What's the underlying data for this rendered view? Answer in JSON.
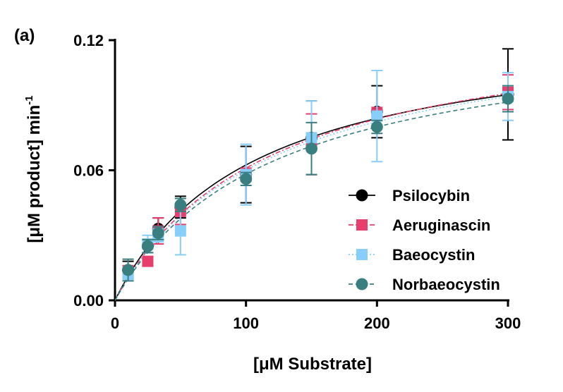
{
  "panel_label": "(a)",
  "chart_data": {
    "type": "scatter",
    "xlabel": "[μM Substrate]",
    "ylabel": "[μM product] min",
    "ylabel_superscript": "-1",
    "xlim": [
      0,
      300
    ],
    "ylim": [
      0,
      0.12
    ],
    "xticks": [
      "0",
      "100",
      "200",
      "300"
    ],
    "yticks": [
      "0.00",
      "0.06",
      "0.12"
    ],
    "xtick_values": [
      0,
      100,
      200,
      300
    ],
    "ytick_values": [
      0,
      0.06,
      0.12
    ],
    "grid": false,
    "legend_position": "bottom-right",
    "series": [
      {
        "name": "Psilocybin",
        "color": "#000000",
        "marker": "circle",
        "line_style": "solid",
        "x": [
          10,
          25,
          33,
          50,
          100,
          150,
          200,
          300
        ],
        "y": [
          0.014,
          0.025,
          0.033,
          0.043,
          0.058,
          0.075,
          0.087,
          0.095
        ],
        "err": [
          0.004,
          0.003,
          0.005,
          0.005,
          0.013,
          0.017,
          0.012,
          0.021
        ],
        "fit": {
          "vmax": 0.128,
          "km": 105
        }
      },
      {
        "name": "Aeruginascin",
        "color": "#e83e6c",
        "marker": "square",
        "line_style": "dashdot",
        "x": [
          10,
          25,
          33,
          50,
          100,
          150,
          200,
          300
        ],
        "y": [
          0.013,
          0.018,
          0.032,
          0.041,
          0.058,
          0.072,
          0.086,
          0.096
        ],
        "err": [
          0.003,
          0.002,
          0.006,
          0.006,
          0.003,
          0.014,
          0.003,
          0.008
        ],
        "fit": {
          "vmax": 0.133,
          "km": 118
        }
      },
      {
        "name": "Baeocystin",
        "color": "#87cefa",
        "marker": "square",
        "line_style": "dotted",
        "x": [
          10,
          25,
          33,
          50,
          100,
          150,
          200,
          300
        ],
        "y": [
          0.012,
          0.026,
          0.03,
          0.032,
          0.058,
          0.075,
          0.085,
          0.094
        ],
        "err": [
          0.003,
          0.004,
          0.003,
          0.011,
          0.014,
          0.017,
          0.021,
          0.011
        ],
        "fit": {
          "vmax": 0.131,
          "km": 118
        }
      },
      {
        "name": "Norbaeocystin",
        "color": "#3a7f80",
        "marker": "circle",
        "line_style": "dashed",
        "x": [
          10,
          25,
          33,
          50,
          100,
          150,
          200,
          300
        ],
        "y": [
          0.014,
          0.025,
          0.031,
          0.044,
          0.056,
          0.07,
          0.08,
          0.093
        ],
        "err": [
          0.005,
          0.003,
          0.003,
          0.003,
          0.003,
          0.012,
          0.003,
          0.006
        ],
        "fit": {
          "vmax": 0.128,
          "km": 120
        }
      }
    ]
  }
}
